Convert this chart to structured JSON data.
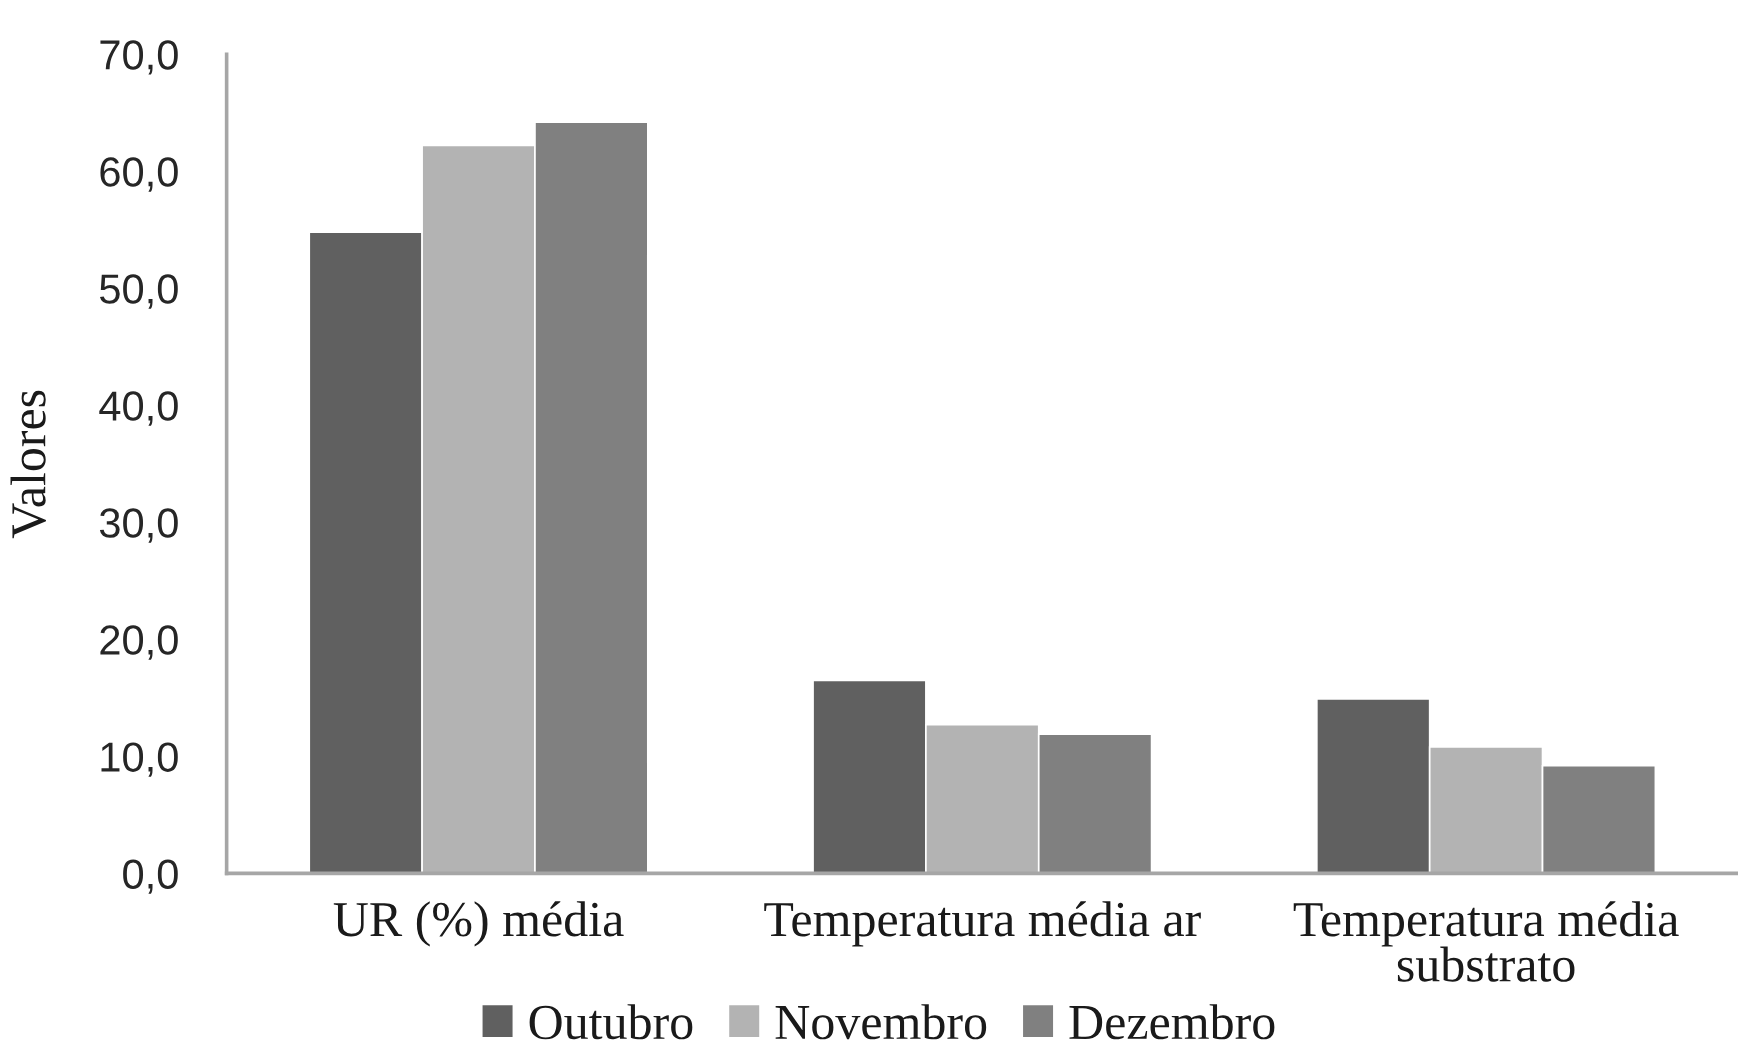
{
  "chart_data": {
    "type": "bar",
    "ylabel": "Valores",
    "categories": [
      "UR (%) média",
      "Temperatura média ar",
      "Temperatura média substrato"
    ],
    "series": [
      {
        "name": "Outubro",
        "color": "#606060",
        "values": [
          54.8,
          16.5,
          14.9
        ]
      },
      {
        "name": "Novembro",
        "color": "#b3b3b3",
        "values": [
          62.2,
          12.7,
          10.8
        ]
      },
      {
        "name": "Dezembro",
        "color": "#808080",
        "values": [
          64.2,
          11.9,
          9.2
        ]
      }
    ],
    "ylim": [
      0,
      70
    ],
    "yticks": [
      {
        "value": 0,
        "label": "0,0"
      },
      {
        "value": 10,
        "label": "10,0"
      },
      {
        "value": 20,
        "label": "20,0"
      },
      {
        "value": 30,
        "label": "30,0"
      },
      {
        "value": 40,
        "label": "40,0"
      },
      {
        "value": 50,
        "label": "50,0"
      },
      {
        "value": 60,
        "label": "60,0"
      },
      {
        "value": 70,
        "label": "70,0"
      }
    ],
    "legend": "bottom"
  }
}
